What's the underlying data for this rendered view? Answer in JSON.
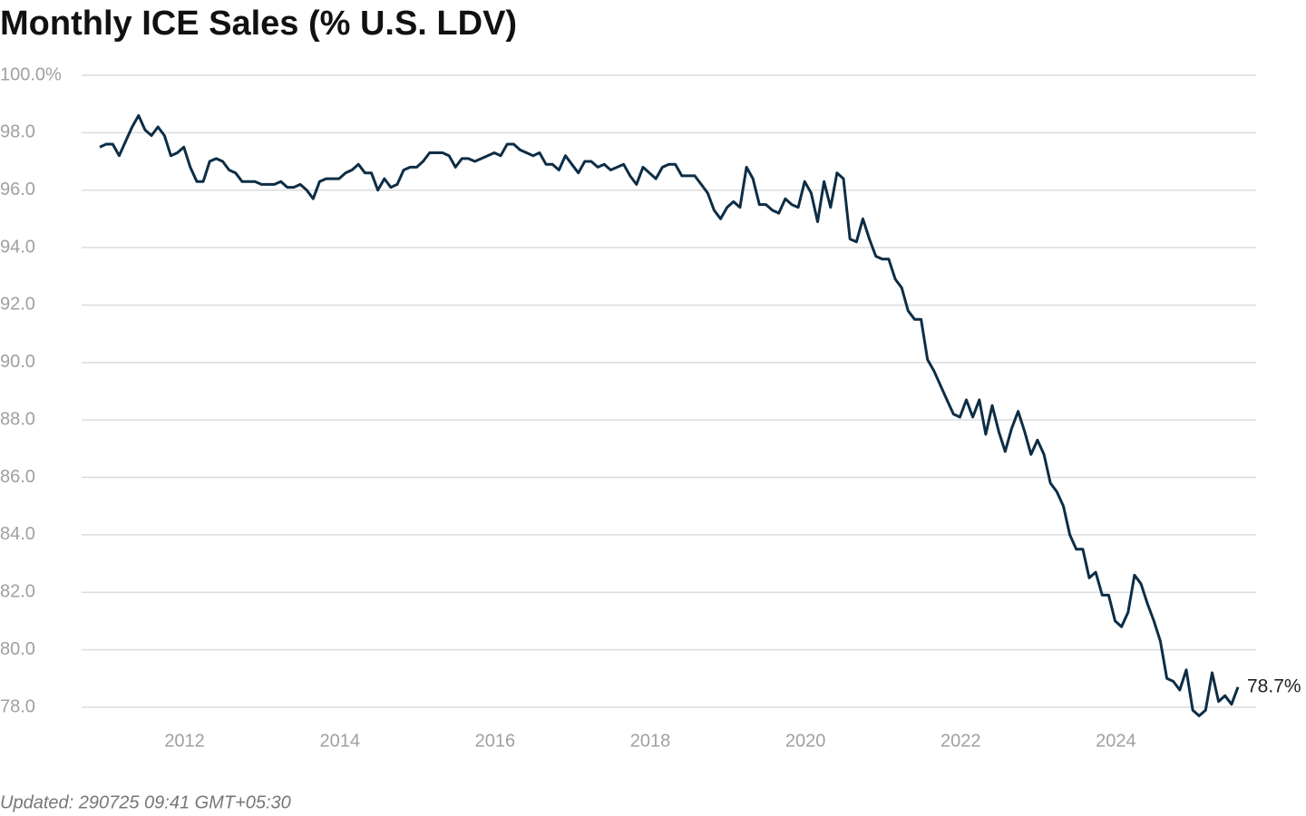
{
  "chart_data": {
    "type": "line",
    "title": "Monthly ICE Sales (% U.S. LDV)",
    "footer": "Updated: 290725 09:41 GMT+05:30",
    "color": "#0d2d45",
    "grid": true,
    "ylim": [
      77.4,
      100
    ],
    "yticks": [
      {
        "value": 78,
        "label": "78.0"
      },
      {
        "value": 80,
        "label": "80.0"
      },
      {
        "value": 82,
        "label": "82.0"
      },
      {
        "value": 84,
        "label": "84.0"
      },
      {
        "value": 86,
        "label": "86.0"
      },
      {
        "value": 88,
        "label": "88.0"
      },
      {
        "value": 90,
        "label": "90.0"
      },
      {
        "value": 92,
        "label": "92.0"
      },
      {
        "value": 94,
        "label": "94.0"
      },
      {
        "value": 96,
        "label": "96.0"
      },
      {
        "value": 98,
        "label": "98.0"
      },
      {
        "value": 100,
        "label": "100.0%"
      }
    ],
    "categories": [
      null,
      null,
      null,
      null,
      null,
      null,
      null,
      null,
      null,
      null,
      null,
      null,
      "2012",
      null,
      null,
      null,
      null,
      null,
      null,
      null,
      null,
      null,
      null,
      null,
      null,
      null,
      null,
      null,
      null,
      null,
      null,
      null,
      null,
      null,
      null,
      null,
      "2014",
      null,
      null,
      null,
      null,
      null,
      null,
      null,
      null,
      null,
      null,
      null,
      null,
      null,
      null,
      null,
      null,
      null,
      null,
      null,
      null,
      null,
      null,
      null,
      "2016",
      null,
      null,
      null,
      null,
      null,
      null,
      null,
      null,
      null,
      null,
      null,
      null,
      null,
      null,
      null,
      null,
      null,
      null,
      null,
      null,
      null,
      null,
      null,
      "2018",
      null,
      null,
      null,
      null,
      null,
      null,
      null,
      null,
      null,
      null,
      null,
      null,
      null,
      null,
      null,
      null,
      null,
      null,
      null,
      null,
      null,
      null,
      null,
      "2020",
      null,
      null,
      null,
      null,
      null,
      null,
      null,
      null,
      null,
      null,
      null,
      null,
      null,
      null,
      null,
      null,
      null,
      null,
      null,
      null,
      null,
      null,
      null,
      "2022",
      null,
      null,
      null,
      null,
      null,
      null,
      null,
      null,
      null,
      null,
      null,
      null,
      null,
      null,
      null,
      null,
      null,
      null,
      null,
      null,
      null,
      null,
      null,
      "2024",
      null,
      null,
      null,
      null,
      null,
      null,
      null,
      null,
      null,
      null,
      null,
      null,
      null,
      null,
      null,
      null,
      null,
      null,
      null,
      null
    ],
    "values": [
      97.5,
      97.6,
      97.6,
      97.2,
      97.7,
      98.2,
      98.6,
      98.1,
      97.9,
      98.2,
      97.9,
      97.2,
      97.3,
      97.5,
      96.8,
      96.3,
      96.3,
      97.0,
      97.1,
      97.0,
      96.7,
      96.6,
      96.3,
      96.3,
      96.3,
      96.2,
      96.2,
      96.2,
      96.3,
      96.1,
      96.1,
      96.2,
      96.0,
      95.7,
      96.3,
      96.4,
      96.4,
      96.4,
      96.6,
      96.7,
      96.9,
      96.6,
      96.6,
      96.0,
      96.4,
      96.1,
      96.2,
      96.7,
      96.8,
      96.8,
      97.0,
      97.3,
      97.3,
      97.3,
      97.2,
      96.8,
      97.1,
      97.1,
      97.0,
      97.1,
      97.2,
      97.3,
      97.2,
      97.6,
      97.6,
      97.4,
      97.3,
      97.2,
      97.3,
      96.9,
      96.9,
      96.7,
      97.2,
      96.9,
      96.6,
      97.0,
      97.0,
      96.8,
      96.9,
      96.7,
      96.8,
      96.9,
      96.5,
      96.2,
      96.8,
      96.6,
      96.4,
      96.8,
      96.9,
      96.9,
      96.5,
      96.5,
      96.5,
      96.2,
      95.9,
      95.3,
      95.0,
      95.4,
      95.6,
      95.4,
      96.8,
      96.4,
      95.5,
      95.5,
      95.3,
      95.2,
      95.7,
      95.5,
      95.4,
      96.3,
      95.9,
      94.9,
      96.3,
      95.4,
      96.6,
      96.4,
      94.3,
      94.2,
      95.0,
      94.3,
      93.7,
      93.6,
      93.6,
      92.9,
      92.6,
      91.8,
      91.5,
      91.5,
      90.1,
      89.7,
      89.2,
      88.7,
      88.2,
      88.1,
      88.7,
      88.1,
      88.7,
      87.5,
      88.5,
      87.6,
      86.9,
      87.7,
      88.3,
      87.6,
      86.8,
      87.3,
      86.8,
      85.8,
      85.5,
      85.0,
      84.0,
      83.5,
      83.5,
      82.5,
      82.7,
      81.9,
      81.9,
      81.0,
      80.8,
      81.3,
      82.6,
      82.3,
      81.6,
      81.0,
      80.3,
      79.0,
      78.9,
      78.6,
      79.3,
      77.9,
      77.7,
      77.9,
      79.2,
      78.2,
      78.4,
      78.1,
      78.7
    ],
    "value_labels": [
      null,
      null,
      null,
      null,
      null,
      null,
      null,
      null,
      null,
      null,
      null,
      null,
      null,
      null,
      null,
      null,
      null,
      null,
      null,
      null,
      null,
      null,
      null,
      null,
      null,
      null,
      null,
      null,
      null,
      null,
      null,
      null,
      null,
      null,
      null,
      null,
      null,
      null,
      null,
      null,
      null,
      null,
      null,
      null,
      null,
      null,
      null,
      null,
      null,
      null,
      null,
      null,
      null,
      null,
      null,
      null,
      null,
      null,
      null,
      null,
      null,
      null,
      null,
      null,
      null,
      null,
      null,
      null,
      null,
      null,
      null,
      null,
      null,
      null,
      null,
      null,
      null,
      null,
      null,
      null,
      null,
      null,
      null,
      null,
      null,
      null,
      null,
      null,
      null,
      null,
      null,
      null,
      null,
      null,
      null,
      null,
      null,
      null,
      null,
      null,
      null,
      null,
      null,
      null,
      null,
      null,
      null,
      null,
      null,
      null,
      null,
      null,
      null,
      null,
      null,
      null,
      null,
      null,
      null,
      null,
      null,
      null,
      null,
      null,
      null,
      null,
      null,
      null,
      null,
      null,
      null,
      null,
      null,
      null,
      null,
      null,
      null,
      null,
      null,
      null,
      null,
      null,
      null,
      null,
      null,
      null,
      null,
      null,
      null,
      null,
      null,
      null,
      null,
      null,
      null,
      null,
      null,
      null,
      null,
      null,
      null,
      null,
      null,
      null,
      null,
      null,
      null,
      null,
      null,
      null,
      null,
      null,
      null,
      null,
      null,
      null,
      "78.7%"
    ]
  }
}
